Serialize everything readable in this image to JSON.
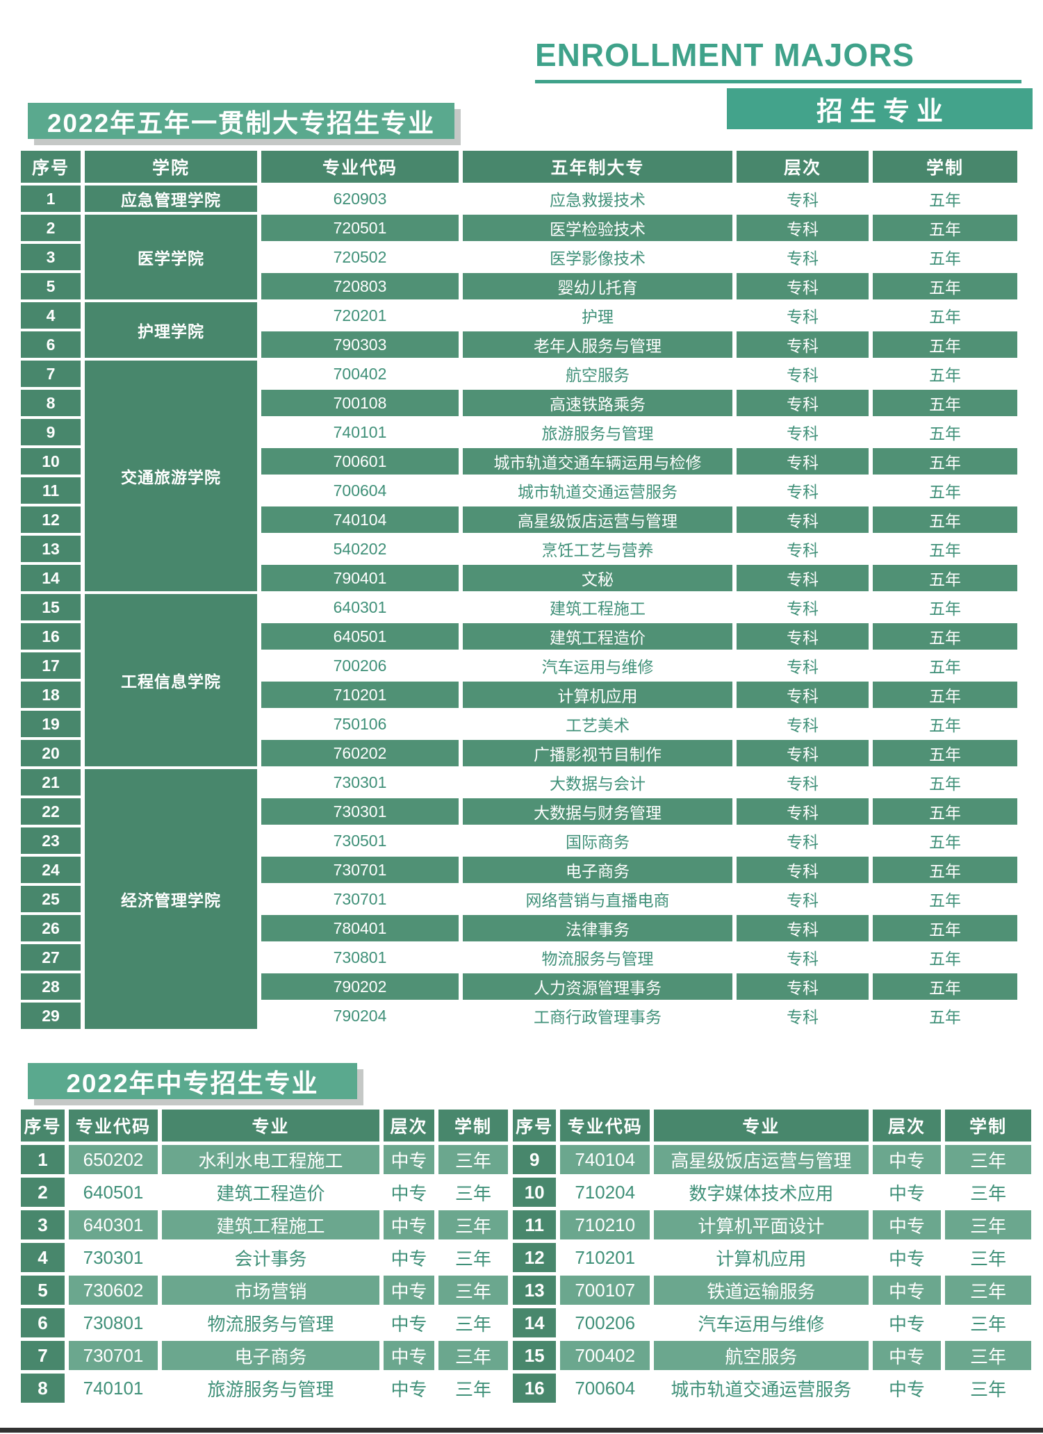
{
  "header": {
    "english_title": "ENROLLMENT MAJORS",
    "chinese_title": "招生专业"
  },
  "colors": {
    "accent_teal": "#3fa28a",
    "section_box_green": "#5aa98e",
    "table_header_green": "#48876c",
    "table1_row_green": "#509175",
    "table2_row_green": "#6ba78e",
    "text_green": "#3f9078",
    "shadow_gray": "#c5c8c6",
    "bottom_bar": "#323232"
  },
  "section1": {
    "title": "2022年五年一贯制大专招生专业",
    "columns": [
      "序号",
      "学院",
      "专业代码",
      "五年制大专",
      "层次",
      "学制"
    ],
    "groups": [
      {
        "college": "应急管理学院",
        "rows": [
          {
            "no": "1",
            "code": "620903",
            "major": "应急救援技术",
            "level": "专科",
            "duration": "五年"
          }
        ]
      },
      {
        "college": "医学学院",
        "rows": [
          {
            "no": "2",
            "code": "720501",
            "major": "医学检验技术",
            "level": "专科",
            "duration": "五年"
          },
          {
            "no": "3",
            "code": "720502",
            "major": "医学影像技术",
            "level": "专科",
            "duration": "五年"
          },
          {
            "no": "5",
            "code": "720803",
            "major": "婴幼儿托育",
            "level": "专科",
            "duration": "五年"
          }
        ]
      },
      {
        "college": "护理学院",
        "rows": [
          {
            "no": "4",
            "code": "720201",
            "major": "护理",
            "level": "专科",
            "duration": "五年"
          },
          {
            "no": "6",
            "code": "790303",
            "major": "老年人服务与管理",
            "level": "专科",
            "duration": "五年"
          }
        ]
      },
      {
        "college": "交通旅游学院",
        "rows": [
          {
            "no": "7",
            "code": "700402",
            "major": "航空服务",
            "level": "专科",
            "duration": "五年"
          },
          {
            "no": "8",
            "code": "700108",
            "major": "高速铁路乘务",
            "level": "专科",
            "duration": "五年"
          },
          {
            "no": "9",
            "code": "740101",
            "major": "旅游服务与管理",
            "level": "专科",
            "duration": "五年"
          },
          {
            "no": "10",
            "code": "700601",
            "major": "城市轨道交通车辆运用与检修",
            "level": "专科",
            "duration": "五年"
          },
          {
            "no": "11",
            "code": "700604",
            "major": "城市轨道交通运营服务",
            "level": "专科",
            "duration": "五年"
          },
          {
            "no": "12",
            "code": "740104",
            "major": "高星级饭店运营与管理",
            "level": "专科",
            "duration": "五年"
          },
          {
            "no": "13",
            "code": "540202",
            "major": "烹饪工艺与营养",
            "level": "专科",
            "duration": "五年"
          },
          {
            "no": "14",
            "code": "790401",
            "major": "文秘",
            "level": "专科",
            "duration": "五年"
          }
        ]
      },
      {
        "college": "工程信息学院",
        "rows": [
          {
            "no": "15",
            "code": "640301",
            "major": "建筑工程施工",
            "level": "专科",
            "duration": "五年"
          },
          {
            "no": "16",
            "code": "640501",
            "major": "建筑工程造价",
            "level": "专科",
            "duration": "五年"
          },
          {
            "no": "17",
            "code": "700206",
            "major": "汽车运用与维修",
            "level": "专科",
            "duration": "五年"
          },
          {
            "no": "18",
            "code": "710201",
            "major": "计算机应用",
            "level": "专科",
            "duration": "五年"
          },
          {
            "no": "19",
            "code": "750106",
            "major": "工艺美术",
            "level": "专科",
            "duration": "五年"
          },
          {
            "no": "20",
            "code": "760202",
            "major": "广播影视节目制作",
            "level": "专科",
            "duration": "五年"
          }
        ]
      },
      {
        "college": "经济管理学院",
        "rows": [
          {
            "no": "21",
            "code": "730301",
            "major": "大数据与会计",
            "level": "专科",
            "duration": "五年"
          },
          {
            "no": "22",
            "code": "730301",
            "major": "大数据与财务管理",
            "level": "专科",
            "duration": "五年"
          },
          {
            "no": "23",
            "code": "730501",
            "major": "国际商务",
            "level": "专科",
            "duration": "五年"
          },
          {
            "no": "24",
            "code": "730701",
            "major": "电子商务",
            "level": "专科",
            "duration": "五年"
          },
          {
            "no": "25",
            "code": "730701",
            "major": "网络营销与直播电商",
            "level": "专科",
            "duration": "五年"
          },
          {
            "no": "26",
            "code": "780401",
            "major": "法律事务",
            "level": "专科",
            "duration": "五年"
          },
          {
            "no": "27",
            "code": "730801",
            "major": "物流服务与管理",
            "level": "专科",
            "duration": "五年"
          },
          {
            "no": "28",
            "code": "790202",
            "major": "人力资源管理事务",
            "level": "专科",
            "duration": "五年"
          },
          {
            "no": "29",
            "code": "790204",
            "major": "工商行政管理事务",
            "level": "专科",
            "duration": "五年"
          }
        ]
      }
    ]
  },
  "section2": {
    "title": "2022年中专招生专业",
    "columns": [
      "序号",
      "专业代码",
      "专业",
      "层次",
      "学制"
    ],
    "left_rows": [
      {
        "no": "1",
        "code": "650202",
        "major": "水利水电工程施工",
        "level": "中专",
        "duration": "三年"
      },
      {
        "no": "2",
        "code": "640501",
        "major": "建筑工程造价",
        "level": "中专",
        "duration": "三年"
      },
      {
        "no": "3",
        "code": "640301",
        "major": "建筑工程施工",
        "level": "中专",
        "duration": "三年"
      },
      {
        "no": "4",
        "code": "730301",
        "major": "会计事务",
        "level": "中专",
        "duration": "三年"
      },
      {
        "no": "5",
        "code": "730602",
        "major": "市场营销",
        "level": "中专",
        "duration": "三年"
      },
      {
        "no": "6",
        "code": "730801",
        "major": "物流服务与管理",
        "level": "中专",
        "duration": "三年"
      },
      {
        "no": "7",
        "code": "730701",
        "major": "电子商务",
        "level": "中专",
        "duration": "三年"
      },
      {
        "no": "8",
        "code": "740101",
        "major": "旅游服务与管理",
        "level": "中专",
        "duration": "三年"
      }
    ],
    "right_rows": [
      {
        "no": "9",
        "code": "740104",
        "major": "高星级饭店运营与管理",
        "level": "中专",
        "duration": "三年"
      },
      {
        "no": "10",
        "code": "710204",
        "major": "数字媒体技术应用",
        "level": "中专",
        "duration": "三年"
      },
      {
        "no": "11",
        "code": "710210",
        "major": "计算机平面设计",
        "level": "中专",
        "duration": "三年"
      },
      {
        "no": "12",
        "code": "710201",
        "major": "计算机应用",
        "level": "中专",
        "duration": "三年"
      },
      {
        "no": "13",
        "code": "700107",
        "major": "铁道运输服务",
        "level": "中专",
        "duration": "三年"
      },
      {
        "no": "14",
        "code": "700206",
        "major": "汽车运用与维修",
        "level": "中专",
        "duration": "三年"
      },
      {
        "no": "15",
        "code": "700402",
        "major": "航空服务",
        "level": "中专",
        "duration": "三年"
      },
      {
        "no": "16",
        "code": "700604",
        "major": "城市轨道交通运营服务",
        "level": "中专",
        "duration": "三年"
      }
    ]
  }
}
